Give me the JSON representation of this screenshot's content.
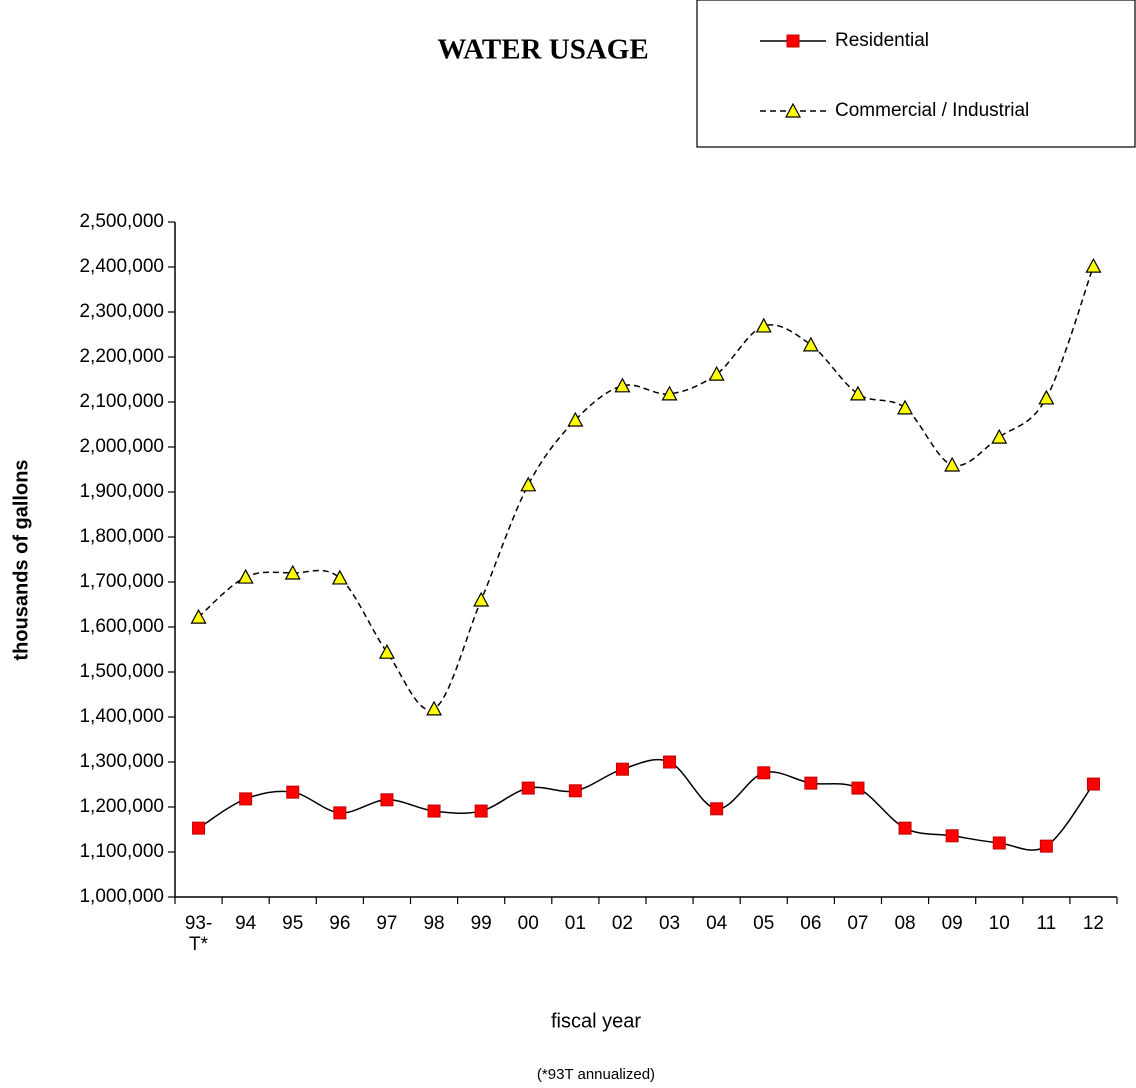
{
  "chart_data": {
    "type": "line",
    "title": "WATER USAGE",
    "x_label": "fiscal year",
    "y_label": "thousands of gallons",
    "note": "(*93T annualized)",
    "categories": [
      "93-T*",
      "94",
      "95",
      "96",
      "97",
      "98",
      "99",
      "00",
      "01",
      "02",
      "03",
      "04",
      "05",
      "06",
      "07",
      "08",
      "09",
      "10",
      "11",
      "12"
    ],
    "series": [
      {
        "name": "Residential",
        "color": "#ff0000",
        "marker": "square",
        "dash": "solid",
        "values": [
          1153000,
          1218000,
          1233000,
          1187000,
          1216000,
          1191000,
          1191000,
          1242000,
          1236000,
          1284000,
          1300000,
          1196000,
          1276000,
          1253000,
          1242000,
          1153000,
          1136000,
          1120000,
          1113000,
          1251000
        ]
      },
      {
        "name": "Commercial / Industrial",
        "color": "#ffff00",
        "marker": "triangle",
        "dash": "dashed",
        "values": [
          1622000,
          1711000,
          1720000,
          1709000,
          1544000,
          1418000,
          1660000,
          1916000,
          2060000,
          2136000,
          2118000,
          2162000,
          2269000,
          2227000,
          2118000,
          2087000,
          1960000,
          2022000,
          2109000,
          2402000
        ]
      }
    ],
    "ylim": [
      1000000,
      2500000
    ],
    "yticks": [
      {
        "value": 1000000,
        "label": "1,000,000"
      },
      {
        "value": 1100000,
        "label": "1,100,000"
      },
      {
        "value": 1200000,
        "label": "1,200,000"
      },
      {
        "value": 1300000,
        "label": "1,300,000"
      },
      {
        "value": 1400000,
        "label": "1,400,000"
      },
      {
        "value": 1500000,
        "label": "1,500,000"
      },
      {
        "value": 1600000,
        "label": "1,600,000"
      },
      {
        "value": 1700000,
        "label": "1,700,000"
      },
      {
        "value": 1800000,
        "label": "1,800,000"
      },
      {
        "value": 1900000,
        "label": "1,900,000"
      },
      {
        "value": 2000000,
        "label": "2,000,000"
      },
      {
        "value": 2100000,
        "label": "2,100,000"
      },
      {
        "value": 2200000,
        "label": "2,200,000"
      },
      {
        "value": 2300000,
        "label": "2,300,000"
      },
      {
        "value": 2400000,
        "label": "2,400,000"
      },
      {
        "value": 2500000,
        "label": "2,500,000"
      }
    ],
    "grid": false,
    "smooth": true,
    "legend": "top-right"
  }
}
